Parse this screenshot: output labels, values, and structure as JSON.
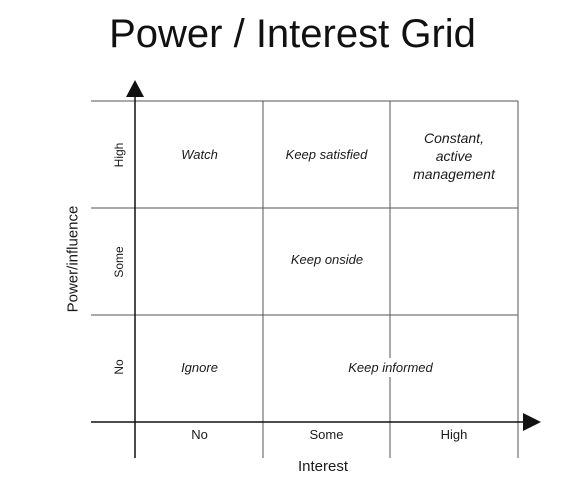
{
  "title": "Power / Interest Grid",
  "axes": {
    "x_label": "Interest",
    "y_label": "Power/influence",
    "x_ticks": [
      "No",
      "Some",
      "High"
    ],
    "y_ticks": [
      "High",
      "Some",
      "No"
    ]
  },
  "cells": {
    "watch": "Watch",
    "keep_satisfied": "Keep satisfied",
    "constant_active_management_line1": "Constant,",
    "constant_active_management_line2": "active",
    "constant_active_management_line3": "management",
    "keep_onside": "Keep onside",
    "ignore": "Ignore",
    "keep_informed": "Keep informed"
  },
  "colors": {
    "grid": "#555555",
    "axis": "#111111",
    "text": "#1a1a1a"
  }
}
